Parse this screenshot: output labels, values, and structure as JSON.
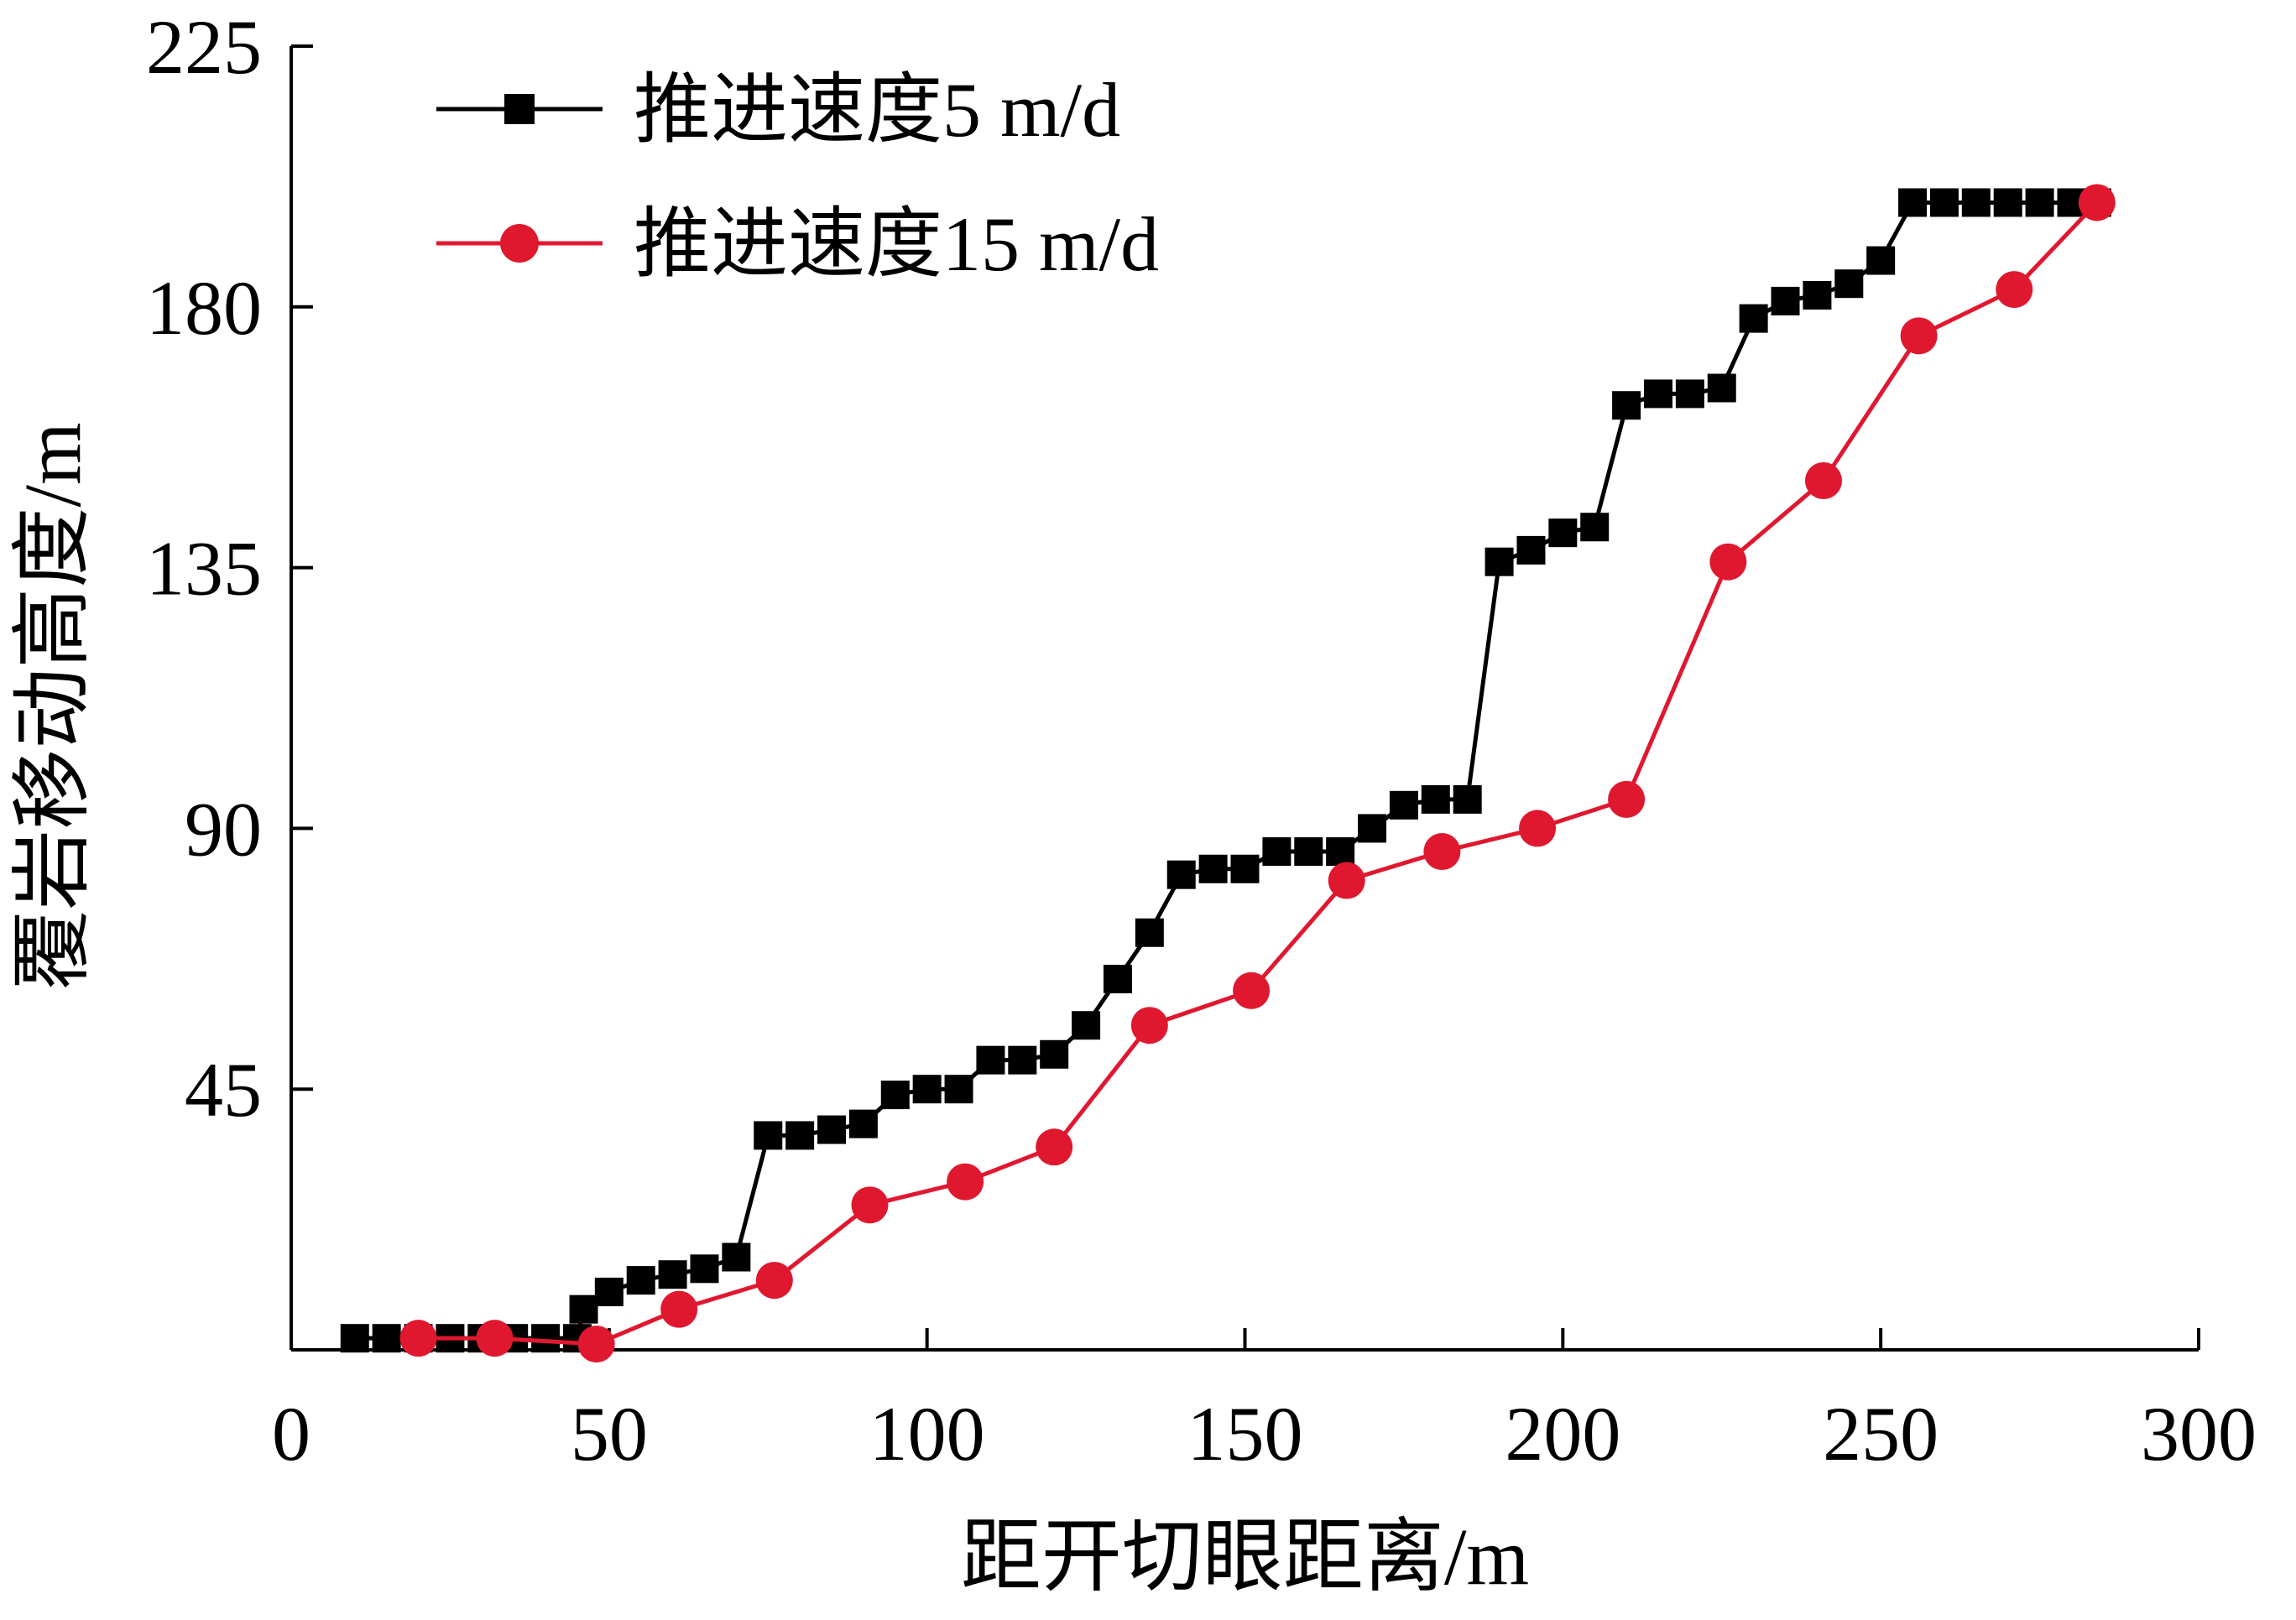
{
  "chart_data": {
    "type": "line",
    "title": "",
    "xlabel": "距开切眼距离/m",
    "ylabel": "覆岩移动高度/m",
    "xlim": [
      0,
      300
    ],
    "ylim": [
      0,
      225
    ],
    "xticks": [
      0,
      50,
      100,
      150,
      200,
      250,
      300
    ],
    "yticks": [
      45,
      90,
      135,
      180,
      225
    ],
    "grid": false,
    "legend_position": "top-left",
    "series": [
      {
        "name": "推进速度5 m/d",
        "color": "#000000",
        "marker": "square",
        "points": [
          [
            10,
            2
          ],
          [
            15,
            2
          ],
          [
            20,
            2
          ],
          [
            25,
            2
          ],
          [
            30,
            2
          ],
          [
            35,
            2
          ],
          [
            40,
            2
          ],
          [
            45,
            2
          ],
          [
            46,
            7
          ],
          [
            50,
            10
          ],
          [
            55,
            12
          ],
          [
            60,
            13
          ],
          [
            65,
            14
          ],
          [
            70,
            16
          ],
          [
            75,
            37
          ],
          [
            80,
            37
          ],
          [
            85,
            38
          ],
          [
            90,
            39
          ],
          [
            95,
            44
          ],
          [
            100,
            45
          ],
          [
            105,
            45
          ],
          [
            110,
            50
          ],
          [
            115,
            50
          ],
          [
            120,
            51
          ],
          [
            125,
            56
          ],
          [
            130,
            64
          ],
          [
            135,
            72
          ],
          [
            140,
            82
          ],
          [
            145,
            83
          ],
          [
            150,
            83
          ],
          [
            155,
            86
          ],
          [
            160,
            86
          ],
          [
            165,
            86
          ],
          [
            170,
            90
          ],
          [
            175,
            94
          ],
          [
            180,
            95
          ],
          [
            185,
            95
          ],
          [
            190,
            136
          ],
          [
            195,
            138
          ],
          [
            200,
            141
          ],
          [
            205,
            142
          ],
          [
            210,
            163
          ],
          [
            215,
            165
          ],
          [
            220,
            165
          ],
          [
            225,
            166
          ],
          [
            230,
            178
          ],
          [
            235,
            181
          ],
          [
            240,
            182
          ],
          [
            245,
            184
          ],
          [
            250,
            188
          ],
          [
            255,
            198
          ],
          [
            260,
            198
          ],
          [
            265,
            198
          ],
          [
            270,
            198
          ],
          [
            275,
            198
          ],
          [
            280,
            198
          ],
          [
            284,
            198
          ]
        ]
      },
      {
        "name": "推进速度15 m/d",
        "color": "#e0182f",
        "marker": "circle",
        "points": [
          [
            20,
            2
          ],
          [
            32,
            2
          ],
          [
            48,
            1
          ],
          [
            61,
            7
          ],
          [
            76,
            12
          ],
          [
            91,
            25
          ],
          [
            106,
            29
          ],
          [
            120,
            35
          ],
          [
            135,
            56
          ],
          [
            151,
            62
          ],
          [
            166,
            81
          ],
          [
            181,
            86
          ],
          [
            196,
            90
          ],
          [
            210,
            95
          ],
          [
            226,
            136
          ],
          [
            241,
            150
          ],
          [
            256,
            175
          ],
          [
            271,
            183
          ],
          [
            284,
            198
          ]
        ]
      }
    ]
  }
}
